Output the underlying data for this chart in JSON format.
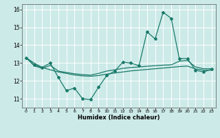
{
  "title": "",
  "xlabel": "Humidex (Indice chaleur)",
  "x": [
    0,
    1,
    2,
    3,
    4,
    5,
    6,
    7,
    8,
    9,
    10,
    11,
    12,
    13,
    14,
    15,
    16,
    17,
    18,
    19,
    20,
    21,
    22,
    23
  ],
  "y_main": [
    13.3,
    12.9,
    12.75,
    13.0,
    12.2,
    11.45,
    11.6,
    11.0,
    10.95,
    11.65,
    12.3,
    12.55,
    13.05,
    13.0,
    12.85,
    14.75,
    14.35,
    15.85,
    15.5,
    13.25,
    13.25,
    12.6,
    12.5,
    12.65
  ],
  "y_line1": [
    13.3,
    12.85,
    12.7,
    12.87,
    12.55,
    12.47,
    12.4,
    12.35,
    12.32,
    12.42,
    12.55,
    12.62,
    12.7,
    12.75,
    12.78,
    12.82,
    12.85,
    12.88,
    12.9,
    13.1,
    13.15,
    12.78,
    12.68,
    12.68
  ],
  "y_line2": [
    13.3,
    13.0,
    12.75,
    12.62,
    12.5,
    12.42,
    12.33,
    12.28,
    12.26,
    12.3,
    12.38,
    12.44,
    12.5,
    12.56,
    12.6,
    12.64,
    12.68,
    12.72,
    12.76,
    12.8,
    12.83,
    12.67,
    12.6,
    12.6
  ],
  "ylim": [
    10.5,
    16.3
  ],
  "xlim": [
    -0.5,
    23.5
  ],
  "yticks": [
    11,
    12,
    13,
    14,
    15,
    16
  ],
  "xticks": [
    0,
    1,
    2,
    3,
    4,
    5,
    6,
    7,
    8,
    9,
    10,
    11,
    12,
    13,
    14,
    15,
    16,
    17,
    18,
    19,
    20,
    21,
    22,
    23
  ],
  "line_color": "#1a7a6a",
  "bg_color": "#cceae8",
  "grid_color": "#ffffff",
  "markersize": 2.0
}
